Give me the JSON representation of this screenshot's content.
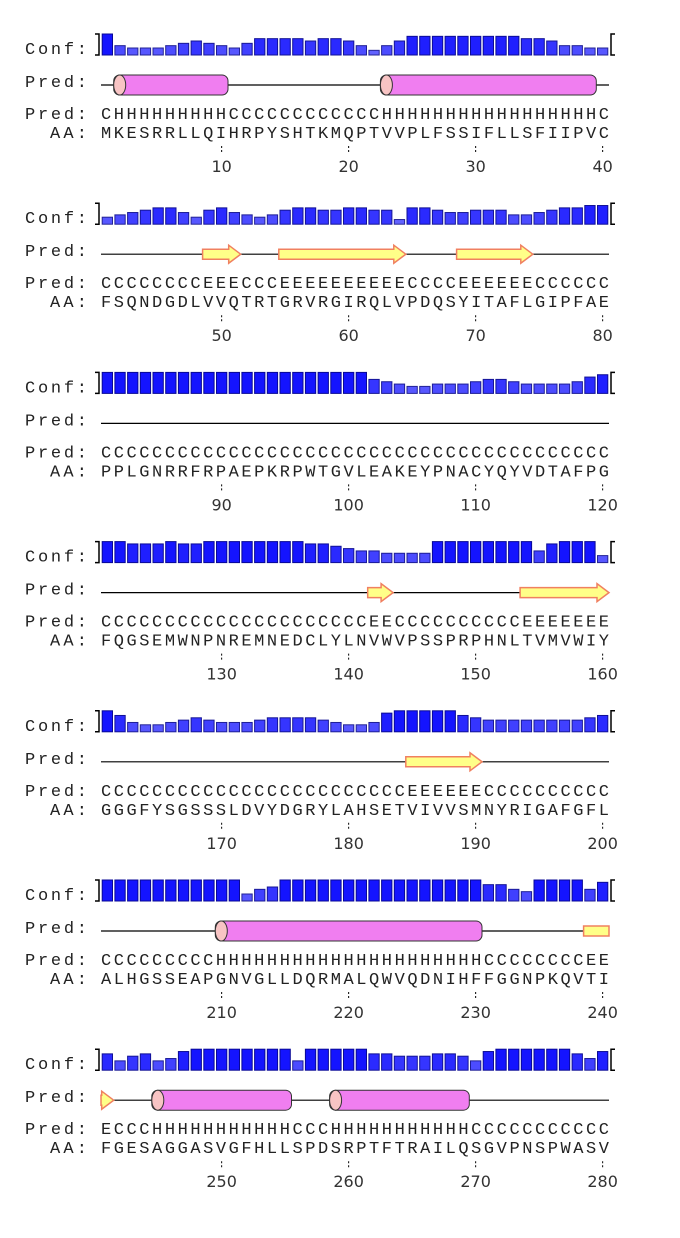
{
  "labels": {
    "conf": "Conf:",
    "pred_cartoon": "Pred:",
    "pred": "Pred:",
    "aa": "AA:"
  },
  "blocks": [
    {
      "conf": [
        9,
        4,
        3,
        3,
        3,
        4,
        5,
        6,
        5,
        4,
        3,
        5,
        7,
        7,
        7,
        7,
        6,
        7,
        7,
        6,
        4,
        2,
        4,
        6,
        8,
        8,
        8,
        8,
        8,
        8,
        8,
        8,
        8,
        7,
        7,
        6,
        4,
        4,
        3,
        3
      ],
      "pred": "CHHHHHHHHHCCCCCCCCCCCCHHHHHHHHHHHHHHHHHC",
      "aa": "MKESRRLLQIHRPYSHTKMQPTVVPLFSSIFLLSFIIPVC",
      "ticks": [
        10,
        20,
        30,
        40
      ]
    },
    {
      "conf": [
        3,
        4,
        5,
        6,
        7,
        7,
        5,
        3,
        6,
        7,
        5,
        4,
        3,
        4,
        6,
        7,
        7,
        6,
        6,
        7,
        7,
        6,
        6,
        2,
        7,
        7,
        6,
        5,
        5,
        6,
        6,
        6,
        4,
        4,
        5,
        6,
        7,
        7,
        8,
        8
      ],
      "pred": "CCCCCCCCEEECCCEEEEEEEEEECCCCEEEEEECCCCCC",
      "aa": "FSQNDGDLVVQTRTGRVRGIRQLVPDQSYITAFLGIPFAE",
      "ticks": [
        50,
        60,
        70,
        80
      ]
    },
    {
      "conf": [
        9,
        9,
        9,
        9,
        9,
        9,
        9,
        9,
        9,
        9,
        9,
        9,
        9,
        9,
        9,
        9,
        9,
        9,
        9,
        9,
        9,
        6,
        5,
        4,
        3,
        3,
        4,
        4,
        4,
        5,
        6,
        6,
        5,
        4,
        4,
        4,
        4,
        5,
        7,
        8
      ],
      "pred": "CCCCCCCCCCCCCCCCCCCCCCCCCCCCCCCCCCCCCCCC",
      "aa": "PPLGNRRFRPAEPKRPWTGVLEAKEYPNACYQYVDTAFPG",
      "ticks": [
        90,
        100,
        110,
        120
      ]
    },
    {
      "conf": [
        9,
        9,
        8,
        8,
        8,
        9,
        8,
        8,
        9,
        9,
        9,
        9,
        9,
        9,
        9,
        9,
        8,
        8,
        7,
        6,
        5,
        5,
        4,
        4,
        4,
        4,
        9,
        9,
        9,
        9,
        9,
        9,
        9,
        9,
        5,
        8,
        9,
        9,
        9,
        3
      ],
      "pred": "CCCCCCCCCCCCCCCCCCCCCEECCCCCCCCCCEEEEEEE",
      "aa": "FQGSEMWNPNREMNEDCLYLNVWVPSSPRPHNLTVMVWIY",
      "ticks": [
        130,
        140,
        150,
        160
      ]
    },
    {
      "conf": [
        9,
        7,
        4,
        3,
        3,
        4,
        5,
        6,
        5,
        4,
        4,
        4,
        5,
        6,
        6,
        6,
        6,
        5,
        4,
        3,
        3,
        4,
        8,
        9,
        9,
        9,
        9,
        9,
        7,
        6,
        5,
        5,
        5,
        5,
        5,
        5,
        5,
        5,
        6,
        7
      ],
      "pred": "CCCCCCCCCCCCCCCCCCCCCCCCEEEEEECCCCCCCCCC",
      "aa": "GGGFYSGSSSLDVYDGRYLAHSETVIVVSMNYRIGAFGFL",
      "ticks": [
        170,
        180,
        190,
        200
      ]
    },
    {
      "conf": [
        9,
        9,
        9,
        9,
        9,
        9,
        9,
        9,
        9,
        9,
        9,
        3,
        5,
        6,
        9,
        9,
        9,
        9,
        9,
        9,
        9,
        9,
        9,
        9,
        9,
        9,
        9,
        9,
        9,
        9,
        7,
        7,
        5,
        4,
        9,
        9,
        9,
        9,
        5,
        8
      ],
      "pred": "CCCCCCCCCHHHHHHHHHHHHHHHHHHHHHCCCCCCCCEE",
      "aa": "ALHGSSEAPGNVGLLDQRMALQWVQDNIHFFGGNPKQVTI",
      "ticks": [
        210,
        220,
        230,
        240
      ]
    },
    {
      "conf": [
        7,
        4,
        6,
        7,
        4,
        5,
        8,
        9,
        9,
        9,
        9,
        9,
        9,
        9,
        9,
        4,
        9,
        9,
        9,
        9,
        9,
        7,
        7,
        6,
        6,
        6,
        7,
        7,
        6,
        4,
        8,
        9,
        9,
        9,
        9,
        9,
        9,
        7,
        5,
        8
      ],
      "pred": "ECCCHHHHHHHHHHHCCCHHHHHHHHHHHCCCCCCCCCCC",
      "aa": "FGESAGGASVGFHLLSPDSRPTFTRAILQSGVPNSPWASV",
      "ticks": [
        250,
        260,
        270,
        280
      ]
    }
  ]
}
